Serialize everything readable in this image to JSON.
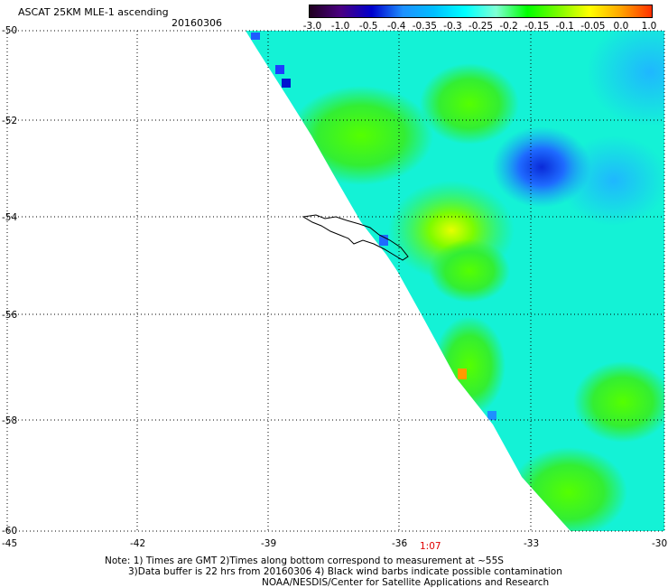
{
  "header": {
    "title": "ASCAT 25KM MLE-1 ascending",
    "date": "20160306"
  },
  "colorbar": {
    "labels": [
      "-3.0",
      "-1.0",
      "-0.5",
      "-0.4",
      "-0.35",
      "-0.3",
      "-0.25",
      "-0.2",
      "-0.15",
      "-0.1",
      "-0.05",
      "0.0",
      "1.0"
    ],
    "colors": [
      "#200020",
      "#4b0082",
      "#0000cd",
      "#1e90ff",
      "#00bfff",
      "#00ffff",
      "#7fffd4",
      "#00ff00",
      "#7cfc00",
      "#ffff00",
      "#ffa500",
      "#ff3000"
    ]
  },
  "map": {
    "lat_labels": [
      "-50",
      "-52",
      "-54",
      "-56",
      "-58",
      "-60"
    ],
    "lon_labels": [
      "-45",
      "-42",
      "-39",
      "-36",
      "-33",
      "-30"
    ],
    "time_label": "1:07"
  },
  "footer": {
    "note1": "Note: 1) Times are GMT 2)Times along bottom correspond to measurement at ~55S",
    "note2": "3)Data buffer is 22 hrs from 20160306 4) Black wind barbs indicate possible contamination",
    "credit": "NOAA/NESDIS/Center for Satellite Applications and Research"
  }
}
